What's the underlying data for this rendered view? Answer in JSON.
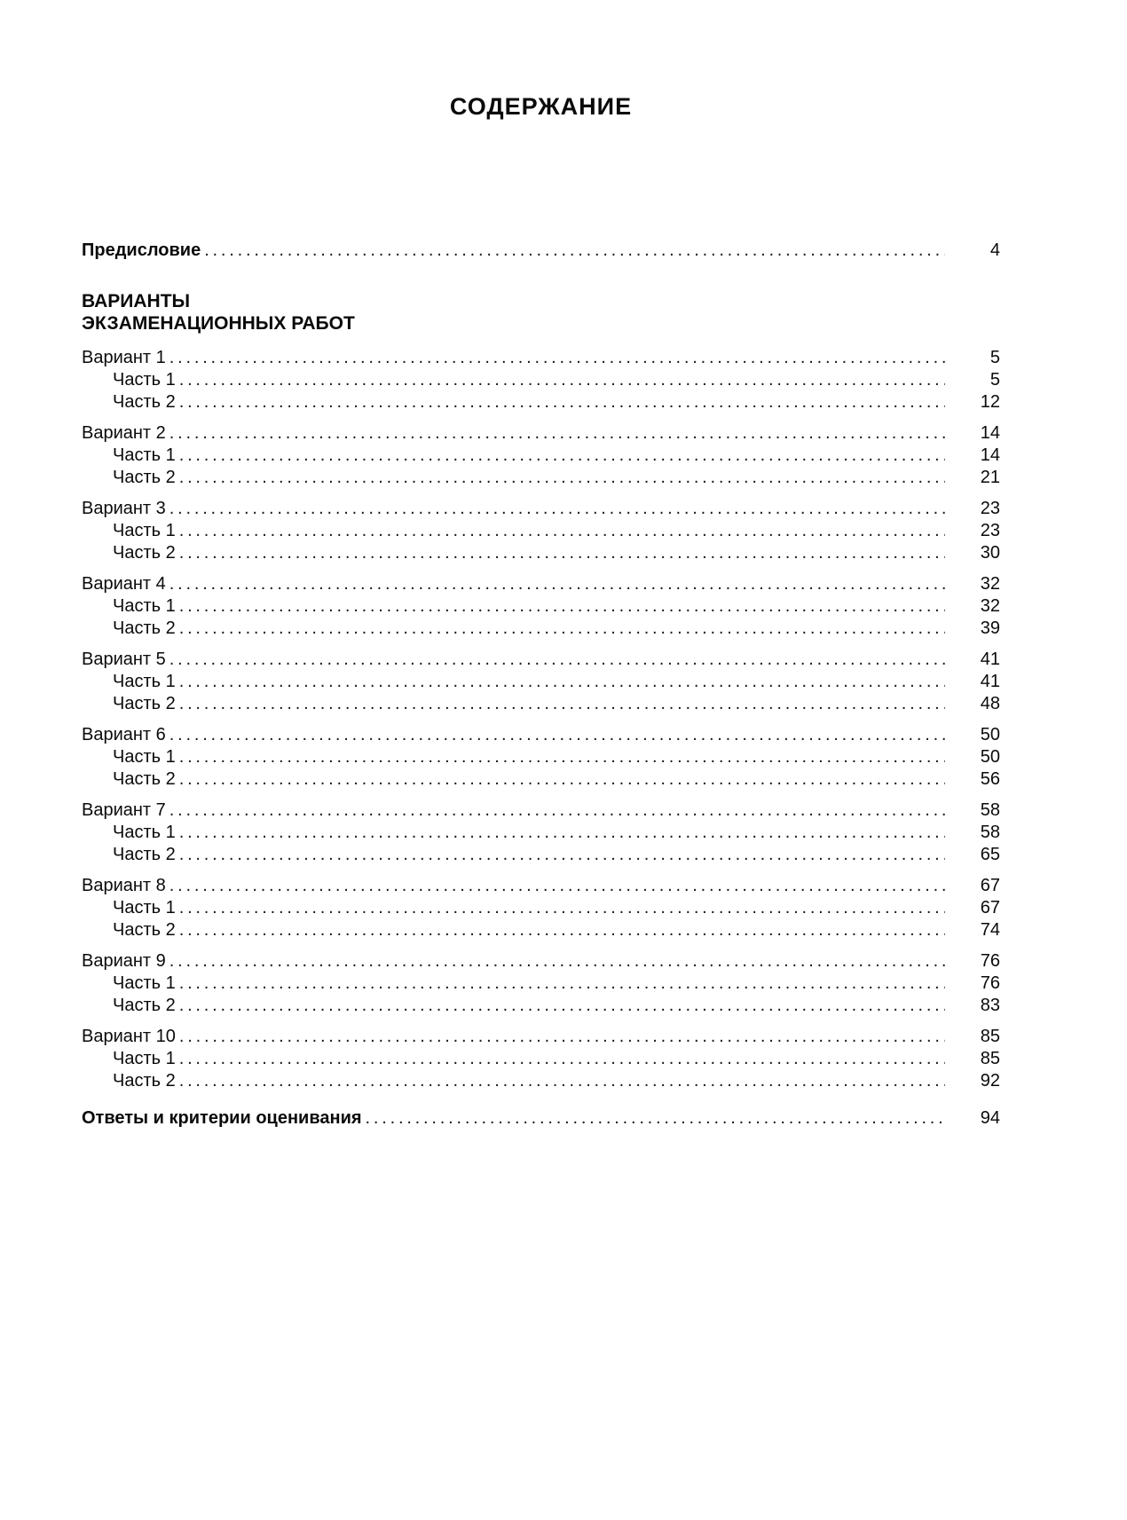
{
  "toc": {
    "title": "СОДЕРЖАНИЕ",
    "preface": {
      "label": "Предисловие",
      "page": "4"
    },
    "section": {
      "line1": "ВАРИАНТЫ",
      "line2": "ЭКЗАМЕНАЦИОННЫХ РАБОТ"
    },
    "variants": [
      {
        "label": "Вариант 1",
        "page": "5",
        "parts": [
          {
            "label": "Часть 1",
            "page": "5"
          },
          {
            "label": "Часть 2",
            "page": "12"
          }
        ]
      },
      {
        "label": "Вариант 2",
        "page": "14",
        "parts": [
          {
            "label": "Часть 1",
            "page": "14"
          },
          {
            "label": "Часть 2",
            "page": "21"
          }
        ]
      },
      {
        "label": "Вариант 3",
        "page": "23",
        "parts": [
          {
            "label": "Часть 1",
            "page": "23"
          },
          {
            "label": "Часть 2",
            "page": "30"
          }
        ]
      },
      {
        "label": "Вариант 4",
        "page": "32",
        "parts": [
          {
            "label": "Часть 1",
            "page": "32"
          },
          {
            "label": "Часть 2",
            "page": "39"
          }
        ]
      },
      {
        "label": "Вариант 5",
        "page": "41",
        "parts": [
          {
            "label": "Часть 1",
            "page": "41"
          },
          {
            "label": "Часть 2",
            "page": "48"
          }
        ]
      },
      {
        "label": "Вариант 6",
        "page": "50",
        "parts": [
          {
            "label": "Часть 1",
            "page": "50"
          },
          {
            "label": "Часть 2",
            "page": "56"
          }
        ]
      },
      {
        "label": "Вариант 7",
        "page": "58",
        "parts": [
          {
            "label": "Часть 1",
            "page": "58"
          },
          {
            "label": "Часть 2",
            "page": "65"
          }
        ]
      },
      {
        "label": "Вариант 8",
        "page": "67",
        "parts": [
          {
            "label": "Часть 1",
            "page": "67"
          },
          {
            "label": "Часть 2",
            "page": "74"
          }
        ]
      },
      {
        "label": "Вариант 9",
        "page": "76",
        "parts": [
          {
            "label": "Часть 1",
            "page": "76"
          },
          {
            "label": "Часть 2",
            "page": "83"
          }
        ]
      },
      {
        "label": "Вариант 10",
        "page": "85",
        "parts": [
          {
            "label": "Часть 1",
            "page": "85"
          },
          {
            "label": "Часть 2",
            "page": "92"
          }
        ]
      }
    ],
    "answers": {
      "label": "Ответы и критерии оценивания",
      "page": "94"
    }
  }
}
